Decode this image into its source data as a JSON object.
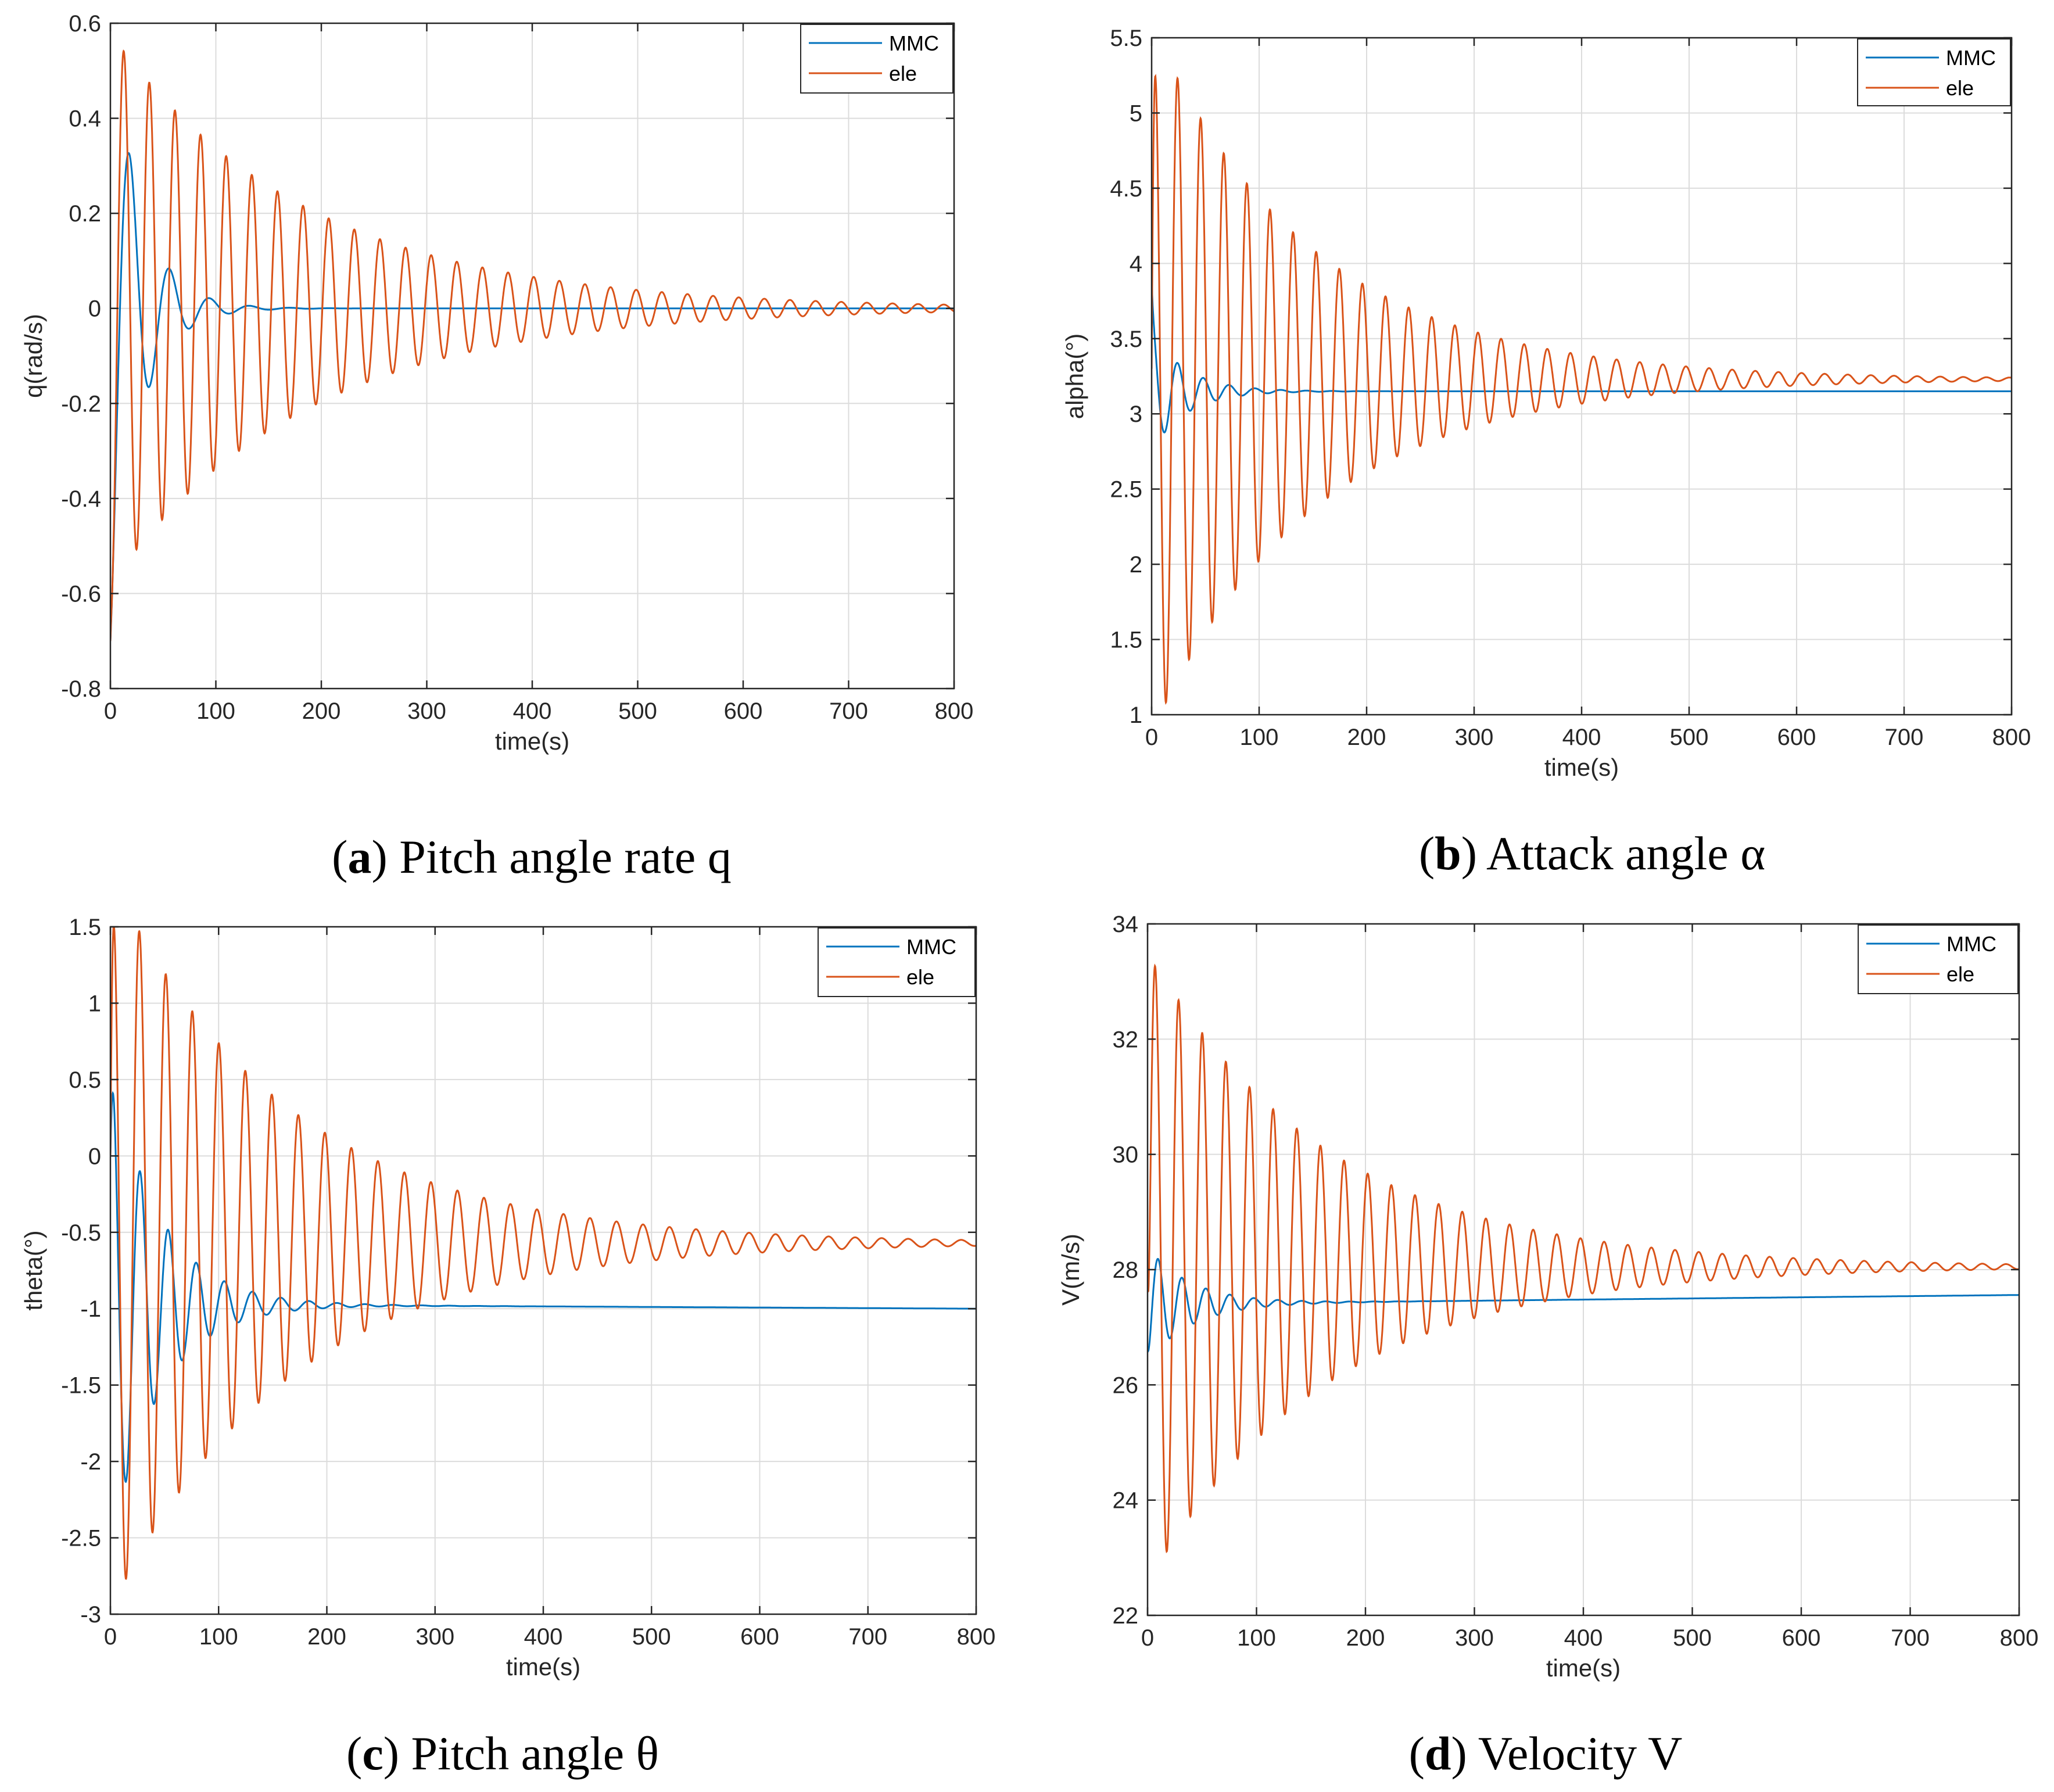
{
  "figure": {
    "panels": [
      {
        "letter": "a",
        "caption": "Pitch angle rate q"
      },
      {
        "letter": "b",
        "caption": "Attack angle  α"
      },
      {
        "letter": "c",
        "caption": "Pitch angle θ"
      },
      {
        "letter": "d",
        "caption": "Velocity V"
      }
    ]
  },
  "colors": {
    "MMC": "#0072BD",
    "ele": "#D95319"
  },
  "chart_data": [
    {
      "type": "line",
      "title": "",
      "xlabel": "time(s)",
      "ylabel": "q(rad/s)",
      "xlim": [
        0,
        800
      ],
      "ylim": [
        -0.8,
        0.6
      ],
      "xticks": [
        0,
        100,
        200,
        300,
        400,
        500,
        600,
        700,
        800
      ],
      "yticks": [
        -0.8,
        -0.6,
        -0.4,
        -0.2,
        0,
        0.2,
        0.4,
        0.6
      ],
      "ytick_labels": [
        "-0.8",
        "-0.6",
        "-0.4",
        "-0.2",
        "0",
        "0.2",
        "0.4",
        "0.6"
      ],
      "grid": true,
      "legend": {
        "position": "top-right",
        "entries": [
          "MMC",
          "ele"
        ]
      },
      "series": [
        {
          "name": "MMC",
          "kind": "damped",
          "start": -0.7,
          "final": 0,
          "amp": 0.62,
          "period": 38,
          "tau": 28,
          "phase": -1.5,
          "drift": 0
        },
        {
          "name": "ele",
          "kind": "damped",
          "start": -0.7,
          "final": 0,
          "amp": 0.58,
          "period": 24.3,
          "tau": 185,
          "phase": -1.7,
          "drift": 0
        }
      ]
    },
    {
      "type": "line",
      "title": "",
      "xlabel": "time(s)",
      "ylabel": "alpha(°)",
      "xlim": [
        0,
        800
      ],
      "ylim": [
        1,
        5.5
      ],
      "xticks": [
        0,
        100,
        200,
        300,
        400,
        500,
        600,
        700,
        800
      ],
      "yticks": [
        1,
        1.5,
        2,
        2.5,
        3,
        3.5,
        4,
        4.5,
        5,
        5.5
      ],
      "ytick_labels": [
        "1",
        "1.5",
        "2",
        "2.5",
        "3",
        "3.5",
        "4",
        "4.5",
        "5",
        "5.5"
      ],
      "grid": true,
      "legend": {
        "position": "top-right",
        "entries": [
          "MMC",
          "ele"
        ]
      },
      "series": [
        {
          "name": "MMC",
          "kind": "damped",
          "start": 3.9,
          "final": 3.15,
          "amp": 0.4,
          "period": 24,
          "tau": 32,
          "phase": 1.5,
          "drift": 0
        },
        {
          "name": "ele",
          "kind": "damped",
          "start": 3.3,
          "final": 3.23,
          "amp": 2.35,
          "period": 21.5,
          "tau": 150,
          "phase": 0.8,
          "drift": 0
        }
      ]
    },
    {
      "type": "line",
      "title": "",
      "xlabel": "time(s)",
      "ylabel": "theta(°)",
      "xlim": [
        0,
        800
      ],
      "ylim": [
        -3,
        1.5
      ],
      "xticks": [
        0,
        100,
        200,
        300,
        400,
        500,
        600,
        700,
        800
      ],
      "yticks": [
        -3,
        -2.5,
        -2,
        -1.5,
        -1,
        -0.5,
        0,
        0.5,
        1,
        1.5
      ],
      "ytick_labels": [
        "-3",
        "-2.5",
        "-2",
        "-1.5",
        "-1",
        "-0.5",
        "0",
        "0.5",
        "1",
        "1.5"
      ],
      "grid": true,
      "legend": {
        "position": "top-right",
        "entries": [
          "MMC",
          "ele"
        ]
      },
      "series": [
        {
          "name": "MMC",
          "kind": "damped",
          "start": 0,
          "final": -0.97,
          "amp": 1.6,
          "period": 26,
          "tau": 45,
          "phase": 1.2,
          "drift": -3.75e-05
        },
        {
          "name": "ele",
          "kind": "damped",
          "start": 0,
          "final": -0.57,
          "amp": 2.4,
          "period": 24.5,
          "tau": 165,
          "phase": 1.0,
          "drift": 0
        }
      ]
    },
    {
      "type": "line",
      "title": "",
      "xlabel": "time(s)",
      "ylabel": "V(m/s)",
      "xlim": [
        0,
        800
      ],
      "ylim": [
        22,
        34
      ],
      "xticks": [
        0,
        100,
        200,
        300,
        400,
        500,
        600,
        700,
        800
      ],
      "yticks": [
        22,
        24,
        26,
        28,
        30,
        32,
        34
      ],
      "ytick_labels": [
        "22",
        "24",
        "26",
        "28",
        "30",
        "32",
        "34"
      ],
      "grid": true,
      "legend": {
        "position": "top-right",
        "entries": [
          "MMC",
          "ele"
        ]
      },
      "series": [
        {
          "name": "MMC",
          "kind": "damped",
          "start": 26.6,
          "final": 27.4,
          "amp": 1.0,
          "period": 22,
          "tau": 40,
          "phase": -1.2,
          "drift": 0.0002
        },
        {
          "name": "ele",
          "kind": "damped",
          "start": 28.0,
          "final": 28.05,
          "amp": 5.5,
          "period": 21.7,
          "tau": 165,
          "phase": -0.4,
          "drift": 0
        }
      ]
    }
  ]
}
